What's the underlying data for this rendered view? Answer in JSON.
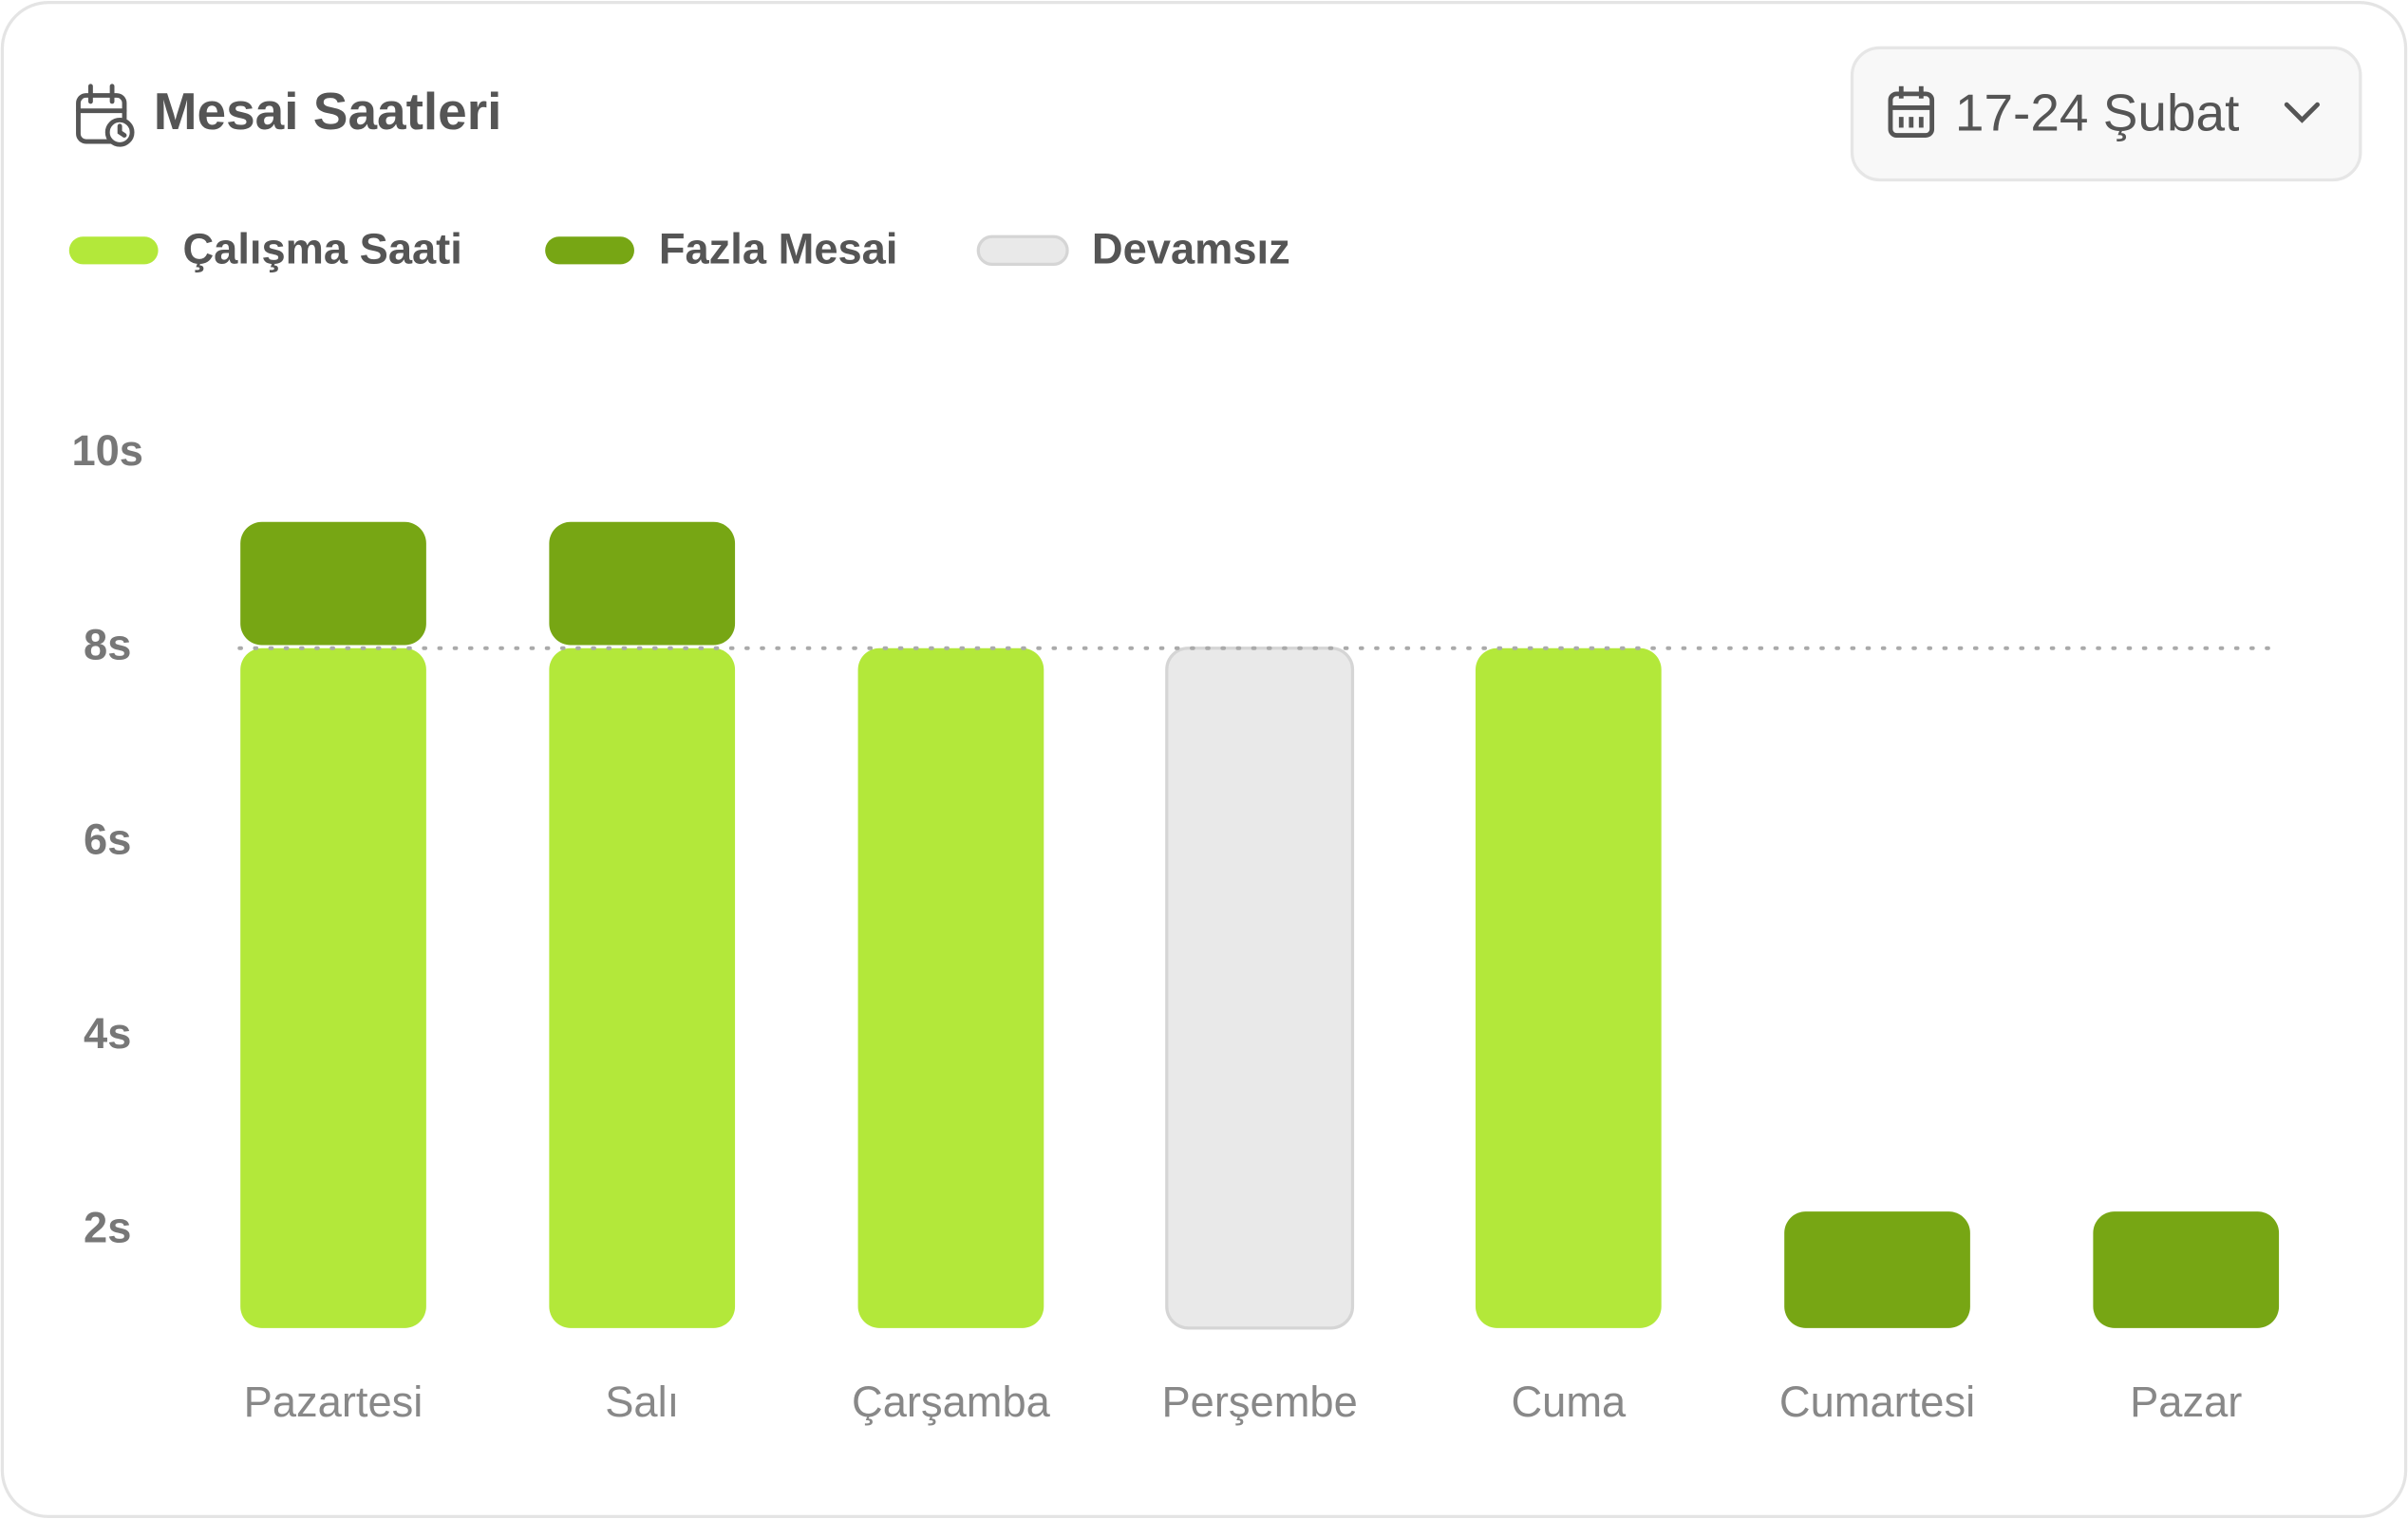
{
  "chart_data": {
    "type": "stacked-bar",
    "title": "Mesai Saatleri",
    "date_range": "17-24 Şubat",
    "categories": [
      "Pazartesi",
      "Salı",
      "Çarşamba",
      "Perşembe",
      "Cuma",
      "Cumartesi",
      "Pazar"
    ],
    "series": [
      {
        "name": "Çalışma Saati",
        "color": "#b3e83a",
        "values": [
          8,
          8,
          8,
          null,
          8,
          null,
          null
        ]
      },
      {
        "name": "Fazla Mesai",
        "color": "#77a614",
        "values": [
          1.3,
          1.3,
          null,
          null,
          null,
          2.2,
          2.2
        ]
      },
      {
        "name": "Devamsız",
        "color": "#e9e9e9",
        "values": [
          null,
          null,
          null,
          8,
          null,
          null,
          null
        ]
      }
    ],
    "ylim": [
      1,
      10
    ],
    "yticks": [
      {
        "value": 2,
        "label": "2s"
      },
      {
        "value": 4,
        "label": "4s"
      },
      {
        "value": 6,
        "label": "6s"
      },
      {
        "value": 8,
        "label": "8s"
      },
      {
        "value": 10,
        "label": "10s"
      }
    ],
    "reference_line": 8,
    "grid": false,
    "legend": "top-left"
  }
}
